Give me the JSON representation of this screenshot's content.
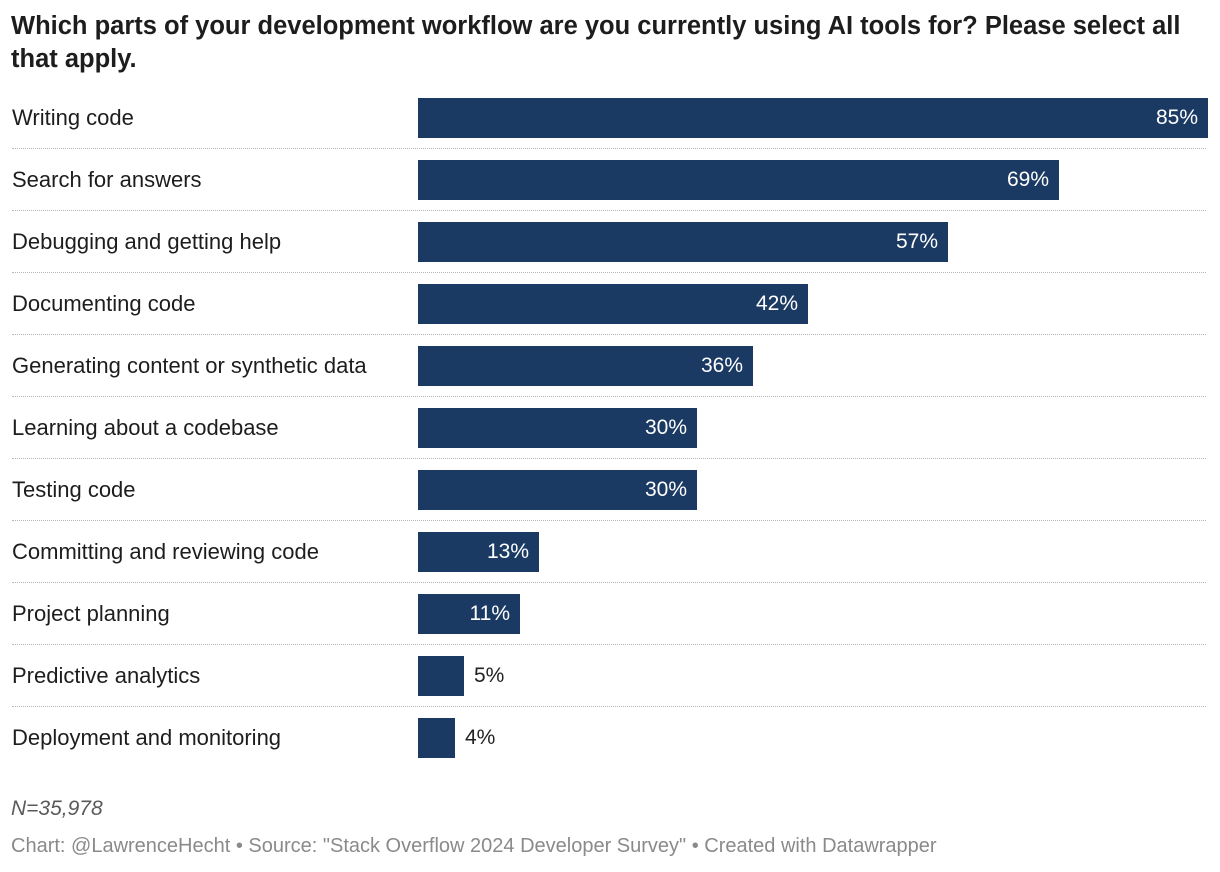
{
  "title": "Which parts of your development workflow are you currently using AI tools for? Please select all that apply.",
  "colors": {
    "bar": "#1b3a63",
    "label_inside": "#ffffff",
    "label_outside": "#222222"
  },
  "chart_data": {
    "type": "bar",
    "orientation": "horizontal",
    "title": "Which parts of your development workflow are you currently using AI tools for? Please select all that apply.",
    "categories": [
      "Writing code",
      "Search for answers",
      "Debugging and getting help",
      "Documenting code",
      "Generating content or synthetic data",
      "Learning about a codebase",
      "Testing code",
      "Committing and reviewing code",
      "Project planning",
      "Predictive analytics",
      "Deployment and monitoring"
    ],
    "values": [
      85,
      69,
      57,
      42,
      36,
      30,
      30,
      13,
      11,
      5,
      4
    ],
    "value_labels": [
      "85%",
      "69%",
      "57%",
      "42%",
      "36%",
      "30%",
      "30%",
      "13%",
      "11%",
      "5%",
      "4%"
    ],
    "unit": "%",
    "xlim": [
      0,
      85
    ],
    "grid": false,
    "xlabel": "",
    "ylabel": ""
  },
  "note": "N=35,978",
  "footer": "Chart: @LawrenceHecht • Source: \"Stack Overflow 2024 Developer Survey\" • Created with Datawrapper"
}
